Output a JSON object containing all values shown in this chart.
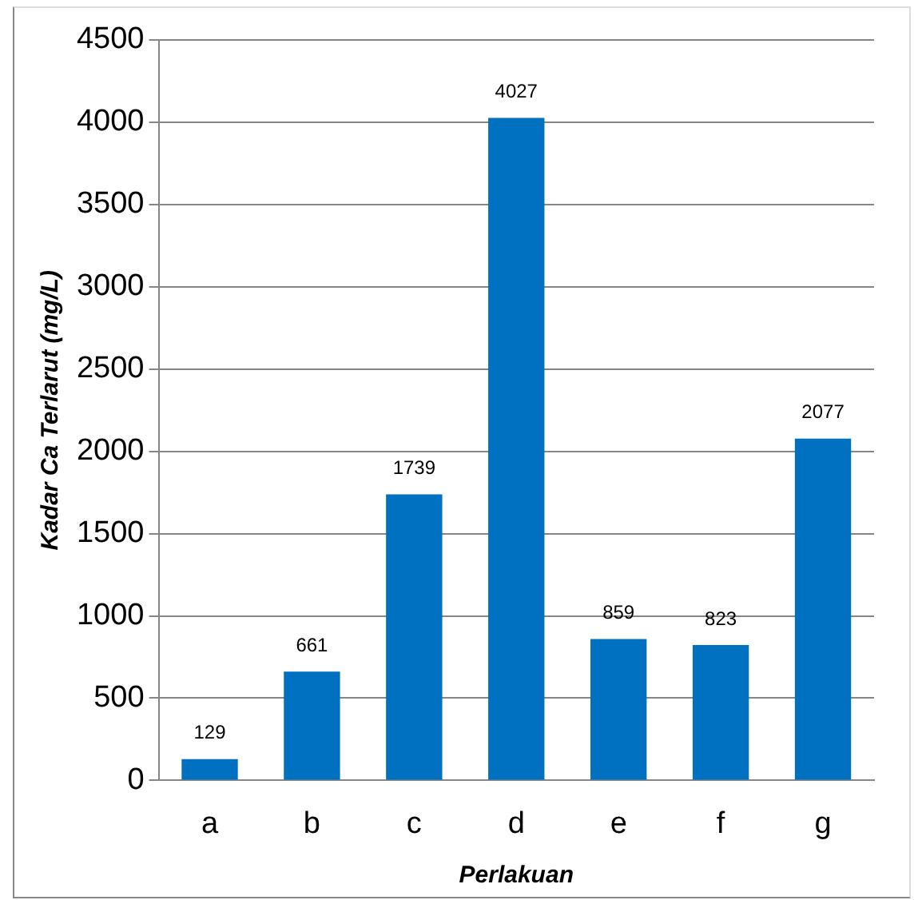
{
  "chart_data": {
    "type": "bar",
    "xlabel": "Perlakuan",
    "ylabel": "Kadar Ca Terlarut (mg/L)",
    "categories": [
      "a",
      "b",
      "c",
      "d",
      "e",
      "f",
      "g"
    ],
    "values": [
      129,
      661,
      1739,
      4027,
      859,
      823,
      2077
    ],
    "color": "#0070c0",
    "ylim": [
      0,
      4500
    ],
    "yticks": [
      0,
      500,
      1000,
      1500,
      2000,
      2500,
      3000,
      3500,
      4000,
      4500
    ],
    "grid": "y",
    "data_labels": true
  }
}
